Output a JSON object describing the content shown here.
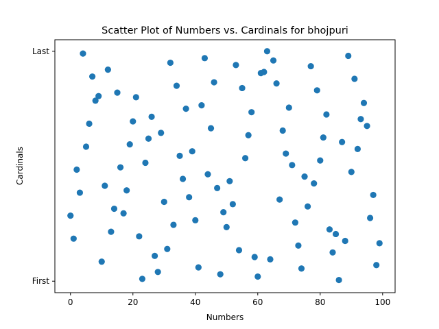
{
  "chart_data": {
    "type": "scatter",
    "title": "Scatter Plot of Numbers vs. Cardinals for bhojpuri",
    "xlabel": "Numbers",
    "ylabel": "Cardinals",
    "xlim": [
      -5,
      104
    ],
    "ylim": [
      -0.05,
      1.05
    ],
    "xticks": [
      0,
      20,
      40,
      60,
      80,
      100
    ],
    "yticks": [
      {
        "value": 0,
        "label": "First"
      },
      {
        "value": 1,
        "label": "Last"
      }
    ],
    "grid": false,
    "color": "#1f77b4",
    "points": [
      {
        "x": 0,
        "y": 0.285
      },
      {
        "x": 1,
        "y": 0.185
      },
      {
        "x": 2,
        "y": 0.485
      },
      {
        "x": 3,
        "y": 0.385
      },
      {
        "x": 4,
        "y": 0.99
      },
      {
        "x": 5,
        "y": 0.585
      },
      {
        "x": 6,
        "y": 0.685
      },
      {
        "x": 7,
        "y": 0.89
      },
      {
        "x": 8,
        "y": 0.785
      },
      {
        "x": 9,
        "y": 0.805
      },
      {
        "x": 10,
        "y": 0.085
      },
      {
        "x": 11,
        "y": 0.415
      },
      {
        "x": 12,
        "y": 0.92
      },
      {
        "x": 13,
        "y": 0.215
      },
      {
        "x": 14,
        "y": 0.315
      },
      {
        "x": 15,
        "y": 0.82
      },
      {
        "x": 16,
        "y": 0.495
      },
      {
        "x": 17,
        "y": 0.295
      },
      {
        "x": 18,
        "y": 0.395
      },
      {
        "x": 19,
        "y": 0.595
      },
      {
        "x": 20,
        "y": 0.695
      },
      {
        "x": 21,
        "y": 0.8
      },
      {
        "x": 22,
        "y": 0.195
      },
      {
        "x": 23,
        "y": 0.01
      },
      {
        "x": 24,
        "y": 0.515
      },
      {
        "x": 25,
        "y": 0.62
      },
      {
        "x": 26,
        "y": 0.715
      },
      {
        "x": 27,
        "y": 0.11
      },
      {
        "x": 28,
        "y": 0.04
      },
      {
        "x": 29,
        "y": 0.645
      },
      {
        "x": 30,
        "y": 0.345
      },
      {
        "x": 31,
        "y": 0.14
      },
      {
        "x": 32,
        "y": 0.95
      },
      {
        "x": 33,
        "y": 0.245
      },
      {
        "x": 34,
        "y": 0.85
      },
      {
        "x": 35,
        "y": 0.545
      },
      {
        "x": 36,
        "y": 0.445
      },
      {
        "x": 37,
        "y": 0.75
      },
      {
        "x": 38,
        "y": 0.365
      },
      {
        "x": 39,
        "y": 0.565
      },
      {
        "x": 40,
        "y": 0.265
      },
      {
        "x": 41,
        "y": 0.06
      },
      {
        "x": 42,
        "y": 0.765
      },
      {
        "x": 43,
        "y": 0.97
      },
      {
        "x": 44,
        "y": 0.465
      },
      {
        "x": 45,
        "y": 0.665
      },
      {
        "x": 46,
        "y": 0.865
      },
      {
        "x": 47,
        "y": 0.405
      },
      {
        "x": 48,
        "y": 0.03
      },
      {
        "x": 49,
        "y": 0.3
      },
      {
        "x": 50,
        "y": 0.235
      },
      {
        "x": 51,
        "y": 0.435
      },
      {
        "x": 52,
        "y": 0.335
      },
      {
        "x": 53,
        "y": 0.94
      },
      {
        "x": 54,
        "y": 0.135
      },
      {
        "x": 55,
        "y": 0.84
      },
      {
        "x": 56,
        "y": 0.535
      },
      {
        "x": 57,
        "y": 0.635
      },
      {
        "x": 58,
        "y": 0.735
      },
      {
        "x": 59,
        "y": 0.105
      },
      {
        "x": 60,
        "y": 0.02
      },
      {
        "x": 61,
        "y": 0.905
      },
      {
        "x": 62,
        "y": 0.91
      },
      {
        "x": 63,
        "y": 1.0
      },
      {
        "x": 64,
        "y": 0.095
      },
      {
        "x": 65,
        "y": 0.96
      },
      {
        "x": 66,
        "y": 0.86
      },
      {
        "x": 67,
        "y": 0.355
      },
      {
        "x": 68,
        "y": 0.655
      },
      {
        "x": 69,
        "y": 0.555
      },
      {
        "x": 70,
        "y": 0.755
      },
      {
        "x": 71,
        "y": 0.505
      },
      {
        "x": 72,
        "y": 0.255
      },
      {
        "x": 73,
        "y": 0.155
      },
      {
        "x": 74,
        "y": 0.055
      },
      {
        "x": 75,
        "y": 0.455
      },
      {
        "x": 76,
        "y": 0.325
      },
      {
        "x": 77,
        "y": 0.935
      },
      {
        "x": 78,
        "y": 0.425
      },
      {
        "x": 79,
        "y": 0.83
      },
      {
        "x": 80,
        "y": 0.525
      },
      {
        "x": 81,
        "y": 0.625
      },
      {
        "x": 82,
        "y": 0.725
      },
      {
        "x": 83,
        "y": 0.225
      },
      {
        "x": 84,
        "y": 0.125
      },
      {
        "x": 85,
        "y": 0.205
      },
      {
        "x": 86,
        "y": 0.005
      },
      {
        "x": 87,
        "y": 0.605
      },
      {
        "x": 88,
        "y": 0.175
      },
      {
        "x": 89,
        "y": 0.98
      },
      {
        "x": 90,
        "y": 0.475
      },
      {
        "x": 91,
        "y": 0.88
      },
      {
        "x": 92,
        "y": 0.575
      },
      {
        "x": 93,
        "y": 0.705
      },
      {
        "x": 94,
        "y": 0.775
      },
      {
        "x": 95,
        "y": 0.675
      },
      {
        "x": 96,
        "y": 0.275
      },
      {
        "x": 97,
        "y": 0.375
      },
      {
        "x": 98,
        "y": 0.07
      },
      {
        "x": 99,
        "y": 0.165
      }
    ]
  }
}
